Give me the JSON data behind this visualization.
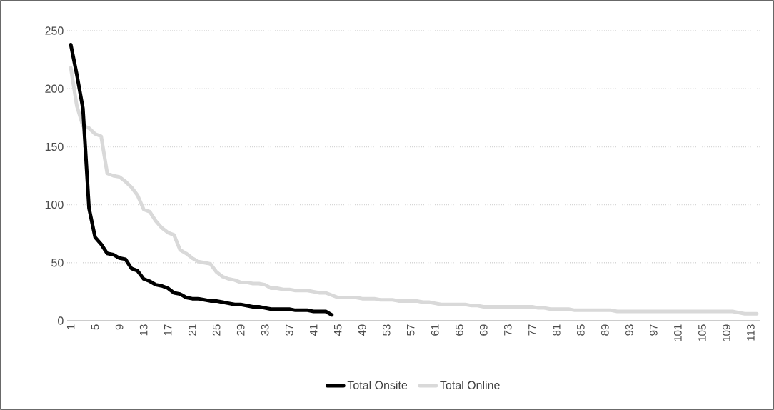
{
  "chart_data": {
    "type": "line",
    "categories": [
      "1",
      null,
      null,
      null,
      "5",
      null,
      null,
      null,
      "9",
      null,
      null,
      null,
      "13",
      null,
      null,
      null,
      "17",
      null,
      null,
      null,
      "21",
      null,
      null,
      null,
      "25",
      null,
      null,
      null,
      "29",
      null,
      null,
      null,
      "33",
      null,
      null,
      null,
      "37",
      null,
      null,
      null,
      "41",
      null,
      null,
      null,
      "45",
      null,
      null,
      null,
      "49",
      null,
      null,
      null,
      "53",
      null,
      null,
      null,
      "57",
      null,
      null,
      null,
      "61",
      null,
      null,
      null,
      "65",
      null,
      null,
      null,
      "69",
      null,
      null,
      null,
      "73",
      null,
      null,
      null,
      "77",
      null,
      null,
      null,
      "81",
      null,
      null,
      null,
      "85",
      null,
      null,
      null,
      "89",
      null,
      null,
      null,
      "93",
      null,
      null,
      null,
      "97",
      null,
      null,
      null,
      "101",
      null,
      null,
      null,
      "105",
      null,
      null,
      null,
      "109",
      null,
      null,
      null,
      "113",
      null
    ],
    "series": [
      {
        "name": "Total Onsite",
        "color": "#000000",
        "values": [
          238,
          212,
          183,
          97,
          72,
          66,
          58,
          57,
          54,
          53,
          45,
          43,
          36,
          34,
          31,
          30,
          28,
          24,
          23,
          20,
          19,
          19,
          18,
          17,
          17,
          16,
          15,
          14,
          14,
          13,
          12,
          12,
          11,
          10,
          10,
          10,
          10,
          9,
          9,
          9,
          8,
          8,
          8,
          5,
          null,
          null,
          null,
          null,
          null,
          null,
          null,
          null,
          null,
          null,
          null,
          null,
          null,
          null,
          null,
          null,
          null,
          null,
          null,
          null,
          null,
          null,
          null,
          null,
          null,
          null,
          null,
          null,
          null,
          null,
          null,
          null,
          null,
          null,
          null,
          null,
          null,
          null,
          null,
          null,
          null,
          null,
          null,
          null,
          null,
          null,
          null,
          null,
          null,
          null,
          null,
          null,
          null,
          null,
          null,
          null,
          null,
          null,
          null,
          null,
          null,
          null,
          null,
          null,
          null,
          null,
          null,
          null,
          null,
          null
        ]
      },
      {
        "name": "Total Online",
        "color": "#d9d9d9",
        "values": [
          218,
          185,
          168,
          166,
          161,
          159,
          127,
          125,
          124,
          120,
          115,
          108,
          96,
          94,
          86,
          80,
          76,
          74,
          61,
          58,
          54,
          51,
          50,
          49,
          42,
          38,
          36,
          35,
          33,
          33,
          32,
          32,
          31,
          28,
          28,
          27,
          27,
          26,
          26,
          26,
          25,
          24,
          24,
          22,
          20,
          20,
          20,
          20,
          19,
          19,
          19,
          18,
          18,
          18,
          17,
          17,
          17,
          17,
          16,
          16,
          15,
          14,
          14,
          14,
          14,
          14,
          13,
          13,
          12,
          12,
          12,
          12,
          12,
          12,
          12,
          12,
          12,
          11,
          11,
          10,
          10,
          10,
          10,
          9,
          9,
          9,
          9,
          9,
          9,
          9,
          8,
          8,
          8,
          8,
          8,
          8,
          8,
          8,
          8,
          8,
          8,
          8,
          8,
          8,
          8,
          8,
          8,
          8,
          8,
          8,
          7,
          6,
          6,
          6
        ]
      }
    ],
    "ylim": [
      0,
      250
    ],
    "yticks": [
      0,
      50,
      100,
      150,
      200,
      250
    ],
    "grid": "y",
    "legend": "bottom",
    "marker": "none",
    "line_style": "solid"
  }
}
